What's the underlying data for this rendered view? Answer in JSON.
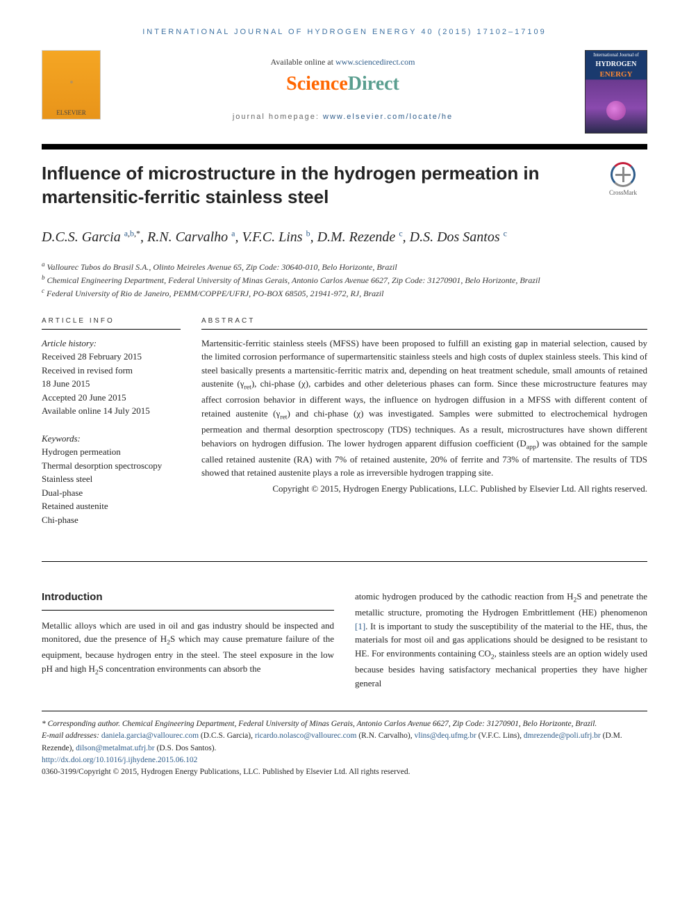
{
  "running_head": "INTERNATIONAL JOURNAL OF HYDROGEN ENERGY 40 (2015) 17102–17109",
  "banner": {
    "elsevier_label": "ELSEVIER",
    "available_prefix": "Available online at ",
    "available_link": "www.sciencedirect.com",
    "sd_science": "Science",
    "sd_direct": "Direct",
    "journal_hp_prefix": "journal homepage: ",
    "journal_hp_link": "www.elsevier.com/locate/he",
    "cover_line1": "International Journal of",
    "cover_line2": "HYDROGEN",
    "cover_line3": "ENERGY"
  },
  "title": "Influence of microstructure in the hydrogen permeation in martensitic-ferritic stainless steel",
  "crossmark_label": "CrossMark",
  "authors_html": "D.C.S. Garcia <sup><a>a</a>,<a>b</a>,*</sup>, R.N. Carvalho <sup><a>a</a></sup>, V.F.C. Lins <sup><a>b</a></sup>, D.M. Rezende <sup><a>c</a></sup>, D.S. Dos Santos <sup><a>c</a></sup>",
  "affiliations": [
    {
      "sup": "a",
      "text": " Vallourec Tubos do Brasil S.A., Olinto Meireles Avenue 65, Zip Code: 30640-010, Belo Horizonte, Brazil"
    },
    {
      "sup": "b",
      "text": " Chemical Engineering Department, Federal University of Minas Gerais, Antonio Carlos Avenue 6627, Zip Code: 31270901, Belo Horizonte, Brazil"
    },
    {
      "sup": "c",
      "text": " Federal University of Rio de Janeiro, PEMM/COPPE/UFRJ, PO-BOX 68505, 21941-972, RJ, Brazil"
    }
  ],
  "article_info": {
    "label": "ARTICLE INFO",
    "history_head": "Article history:",
    "history": [
      "Received 28 February 2015",
      "Received in revised form",
      "18 June 2015",
      "Accepted 20 June 2015",
      "Available online 14 July 2015"
    ],
    "keywords_head": "Keywords:",
    "keywords": [
      "Hydrogen permeation",
      "Thermal desorption spectroscopy",
      "Stainless steel",
      "Dual-phase",
      "Retained austenite",
      "Chi-phase"
    ]
  },
  "abstract": {
    "label": "ABSTRACT",
    "text": "Martensitic-ferritic stainless steels (MFSS) have been proposed to fulfill an existing gap in material selection, caused by the limited corrosion performance of supermartensitic stainless steels and high costs of duplex stainless steels. This kind of steel basically presents a martensitic-ferritic matrix and, depending on heat treatment schedule, small amounts of retained austenite (γret), chi-phase (χ), carbides and other deleterious phases can form. Since these microstructure features may affect corrosion behavior in different ways, the influence on hydrogen diffusion in a MFSS with different content of retained austenite (γret) and chi-phase (χ) was investigated. Samples were submitted to electrochemical hydrogen permeation and thermal desorption spectroscopy (TDS) techniques. As a result, microstructures have shown different behaviors on hydrogen diffusion. The lower hydrogen apparent diffusion coefficient (Dapp) was obtained for the sample called retained austenite (RA) with 7% of retained austenite, 20% of ferrite and 73% of martensite. The results of TDS showed that retained austenite plays a role as irreversible hydrogen trapping site.",
    "copyright": "Copyright © 2015, Hydrogen Energy Publications, LLC. Published by Elsevier Ltd. All rights reserved."
  },
  "intro": {
    "head": "Introduction",
    "col1": "Metallic alloys which are used in oil and gas industry should be inspected and monitored, due the presence of H₂S which may cause premature failure of the equipment, because hydrogen entry in the steel. The steel exposure in the low pH and high H₂S concentration environments can absorb the",
    "col2_pre": "atomic hydrogen produced by the cathodic reaction from H₂S and penetrate the metallic structure, promoting the Hydrogen Embrittlement (HE) phenomenon ",
    "col2_ref": "[1]",
    "col2_post": ". It is important to study the susceptibility of the material to the HE, thus, the materials for most oil and gas applications should be designed to be resistant to HE. For environments containing CO₂, stainless steels are an option widely used because besides having satisfactory mechanical properties they have higher general"
  },
  "footer": {
    "corresponding": "* Corresponding author. Chemical Engineering Department, Federal University of Minas Gerais, Antonio Carlos Avenue 6627, Zip Code: 31270901, Belo Horizonte, Brazil.",
    "email_label": "E-mail addresses: ",
    "emails": [
      {
        "addr": "daniela.garcia@vallourec.com",
        "who": " (D.C.S. Garcia), "
      },
      {
        "addr": "ricardo.nolasco@vallourec.com",
        "who": " (R.N. Carvalho), "
      },
      {
        "addr": "vlins@deq.ufmg.br",
        "who": " (V.F.C. Lins), "
      },
      {
        "addr": "dmrezende@poli.ufrj.br",
        "who": " (D.M. Rezende), "
      },
      {
        "addr": "dilson@metalmat.ufrj.br",
        "who": " (D.S. Dos Santos)."
      }
    ],
    "doi": "http://dx.doi.org/10.1016/j.ijhydene.2015.06.102",
    "issn_copyright": "0360-3199/Copyright © 2015, Hydrogen Energy Publications, LLC. Published by Elsevier Ltd. All rights reserved."
  },
  "colors": {
    "link": "#2e5c8a",
    "sd_orange": "#ff6600",
    "sd_teal": "#5a9e8f",
    "running_head": "#3b6fa0"
  }
}
